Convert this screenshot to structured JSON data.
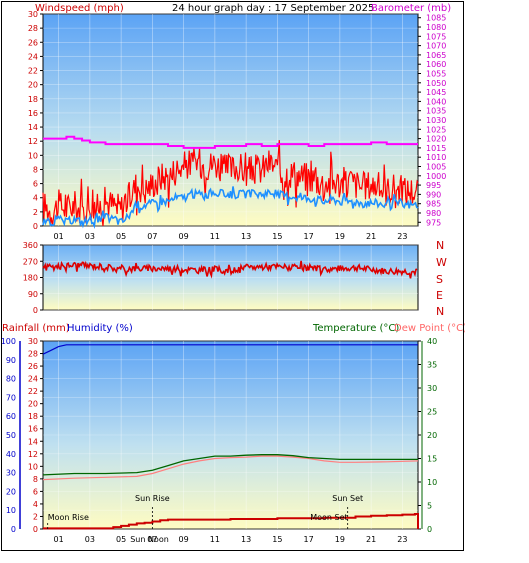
{
  "header": {
    "wind_label": "Windspeed (mph)",
    "title": "24 hour graph day : 17 September 2025",
    "baro_label": "Barometer (mb)"
  },
  "direction_letters": [
    "N",
    "W",
    "S",
    "E",
    "N"
  ],
  "lower_header": {
    "rain_label": "Rainfall (mm)",
    "humidity_label": "Humidity (%)",
    "temp_label": "Temperature (°C)",
    "dew_label": "Dew Point (°C)"
  },
  "annotations": {
    "sun_rise": "Sun Rise",
    "sun_set": "Sun Set",
    "moon_rise": "Moon Rise",
    "moon_set": "Moon Set",
    "sun_noon": "Sun Noon"
  },
  "colors": {
    "wind_gust": "#ff0000",
    "wind_avg": "#1e90ff",
    "barometer": "#ff00ff",
    "direction": "#dd0000",
    "humidity": "#0000cc",
    "temperature": "#006600",
    "dew_point": "#ff8080",
    "rainfall": "#cc0000"
  },
  "chart_data": [
    {
      "type": "line",
      "name": "wind-barometer",
      "x_ticks": [
        "01",
        "03",
        "05",
        "07",
        "09",
        "11",
        "13",
        "15",
        "17",
        "19",
        "21",
        "23"
      ],
      "x_range": [
        0,
        24
      ],
      "ylabel": "Windspeed (mph)",
      "ylim": [
        0,
        30
      ],
      "y_ticks": [
        0,
        2,
        4,
        6,
        8,
        10,
        12,
        14,
        16,
        18,
        20,
        22,
        24,
        26,
        28,
        30
      ],
      "y2label": "Barometer (mb)",
      "y2lim": [
        973,
        1087
      ],
      "y2_ticks": [
        975,
        980,
        985,
        990,
        995,
        1000,
        1005,
        1010,
        1015,
        1020,
        1025,
        1030,
        1035,
        1040,
        1045,
        1050,
        1055,
        1060,
        1065,
        1070,
        1075,
        1080,
        1085
      ],
      "series": [
        {
          "name": "gust",
          "x": [
            0,
            0.5,
            1,
            1.5,
            2,
            2.5,
            3,
            3.5,
            4,
            4.5,
            5,
            5.5,
            6,
            6.5,
            7,
            7.5,
            8,
            8.5,
            9,
            9.5,
            10,
            10.5,
            11,
            11.5,
            12,
            12.5,
            13,
            13.5,
            14,
            14.5,
            15,
            15.5,
            16,
            16.5,
            17,
            17.5,
            18,
            18.5,
            19,
            19.5,
            20,
            20.5,
            21,
            21.5,
            22,
            22.5,
            23,
            23.5
          ],
          "values": [
            3,
            2,
            3,
            2.5,
            3,
            2,
            3,
            2.5,
            3.5,
            3,
            2.5,
            4,
            6,
            5,
            6,
            7,
            7,
            8,
            8.5,
            9,
            9,
            8.5,
            9,
            8,
            8,
            8.5,
            7.5,
            8,
            8,
            9,
            8,
            7.5,
            7.5,
            7,
            7,
            6.5,
            6,
            6.5,
            6,
            6.5,
            6,
            5.5,
            6,
            5.5,
            5,
            5.5,
            5,
            5
          ]
        },
        {
          "name": "average",
          "x": [
            0,
            0.5,
            1,
            1.5,
            2,
            2.5,
            3,
            3.5,
            4,
            4.5,
            5,
            5.5,
            6,
            6.5,
            7,
            7.5,
            8,
            8.5,
            9,
            9.5,
            10,
            10.5,
            11,
            11.5,
            12,
            12.5,
            13,
            13.5,
            14,
            14.5,
            15,
            15.5,
            16,
            16.5,
            17,
            17.5,
            18,
            18.5,
            19,
            19.5,
            20,
            20.5,
            21,
            21.5,
            22,
            22.5,
            23,
            23.5
          ],
          "values": [
            0.5,
            0.5,
            1,
            0.5,
            1,
            0.5,
            1,
            0.8,
            1.2,
            1,
            0.5,
            1.5,
            3,
            3,
            3.2,
            3.5,
            3.5,
            4,
            4,
            4.5,
            4.5,
            4.5,
            4.8,
            4.5,
            4.5,
            4.5,
            4.5,
            4.5,
            4.5,
            4.8,
            4.5,
            4.3,
            4.2,
            4,
            4,
            3.8,
            3.5,
            3.8,
            3.5,
            3.5,
            3.5,
            3.2,
            3.3,
            3.2,
            3,
            3.2,
            3,
            3
          ]
        },
        {
          "name": "barometer",
          "axis": "y2",
          "x": [
            0,
            1,
            1.5,
            2,
            2.5,
            3,
            4,
            5,
            6,
            7,
            8,
            9,
            10,
            11,
            12,
            13,
            14,
            15,
            16,
            17,
            18,
            19,
            20,
            21,
            21.5,
            22,
            23,
            24
          ],
          "values": [
            1020,
            1020,
            1021,
            1020,
            1019,
            1018,
            1017,
            1017,
            1017,
            1017,
            1016,
            1015,
            1015,
            1016,
            1016,
            1017,
            1016,
            1017,
            1017,
            1016,
            1017,
            1017,
            1017,
            1018,
            1018,
            1017,
            1017,
            1017
          ]
        }
      ]
    },
    {
      "type": "line",
      "name": "wind-direction",
      "x_range": [
        0,
        24
      ],
      "ylim": [
        0,
        360
      ],
      "y_ticks": [
        0,
        90,
        180,
        270,
        360
      ],
      "series": [
        {
          "name": "direction",
          "x": [
            0,
            1,
            2,
            3,
            4,
            5,
            6,
            7,
            8,
            9,
            10,
            11,
            12,
            13,
            14,
            15,
            16,
            17,
            18,
            19,
            20,
            21,
            22,
            23,
            24
          ],
          "values": [
            230,
            240,
            250,
            245,
            240,
            225,
            230,
            230,
            230,
            225,
            220,
            225,
            215,
            235,
            240,
            240,
            235,
            230,
            225,
            230,
            235,
            225,
            215,
            215,
            210
          ]
        }
      ]
    },
    {
      "type": "line",
      "name": "rain-humidity-temperature",
      "x_ticks": [
        "01",
        "03",
        "05",
        "07",
        "09",
        "11",
        "13",
        "15",
        "17",
        "19",
        "21",
        "23"
      ],
      "x_range": [
        0,
        24
      ],
      "y_humidity_range": [
        0,
        100
      ],
      "y_humidity_ticks": [
        0,
        10,
        20,
        30,
        40,
        50,
        60,
        70,
        80,
        90,
        100
      ],
      "y_rain_range": [
        0,
        30
      ],
      "y_rain_ticks": [
        0,
        2,
        4,
        6,
        8,
        10,
        12,
        14,
        16,
        18,
        20,
        22,
        24,
        26,
        28,
        30
      ],
      "y_temp_range": [
        0,
        40
      ],
      "y_temp_ticks": [
        0,
        5,
        10,
        15,
        20,
        25,
        30,
        35,
        40
      ],
      "series": [
        {
          "name": "humidity",
          "x": [
            0,
            0.5,
            1,
            1.5,
            2,
            24
          ],
          "values": [
            93,
            95,
            97,
            98,
            98,
            98
          ]
        },
        {
          "name": "temperature",
          "x": [
            0,
            2,
            4,
            6,
            7,
            8,
            9,
            10,
            11,
            12,
            13,
            14,
            15,
            16,
            17,
            18,
            19,
            20,
            22,
            24
          ],
          "values": [
            11.5,
            11.8,
            11.8,
            12,
            12.5,
            13.5,
            14.5,
            15,
            15.5,
            15.5,
            15.7,
            15.8,
            15.8,
            15.6,
            15.2,
            15.0,
            14.8,
            14.8,
            14.8,
            14.8
          ]
        },
        {
          "name": "dew_point",
          "x": [
            0,
            2,
            4,
            6,
            7,
            8,
            9,
            10,
            11,
            12,
            13,
            14,
            15,
            16,
            17,
            18,
            19,
            20,
            22,
            24
          ],
          "values": [
            10.5,
            10.8,
            11,
            11.2,
            11.8,
            12.8,
            13.8,
            14.5,
            15,
            15.2,
            15.3,
            15.5,
            15.5,
            15.3,
            15.0,
            14.5,
            14.2,
            14.2,
            14.3,
            14.5
          ]
        },
        {
          "name": "rainfall",
          "x": [
            0,
            4,
            4.5,
            5,
            5.5,
            6,
            6.5,
            7,
            7.5,
            8,
            9,
            12,
            15,
            18,
            20,
            21,
            22,
            23,
            23.8,
            24
          ],
          "values": [
            0.1,
            0.1,
            0.3,
            0.5,
            0.7,
            0.9,
            1,
            1.2,
            1.4,
            1.5,
            1.5,
            1.6,
            1.7,
            1.8,
            2.0,
            2.1,
            2.2,
            2.3,
            2.4,
            0
          ]
        }
      ],
      "markers": [
        {
          "label": "sun_rise",
          "hour": 7.0
        },
        {
          "label": "sun_set",
          "hour": 19.5
        },
        {
          "label": "moon_rise",
          "hour": 0.3
        },
        {
          "label": "moon_set",
          "hour": 18.3
        },
        {
          "label": "sun_noon",
          "hour": 7.2
        }
      ]
    }
  ]
}
